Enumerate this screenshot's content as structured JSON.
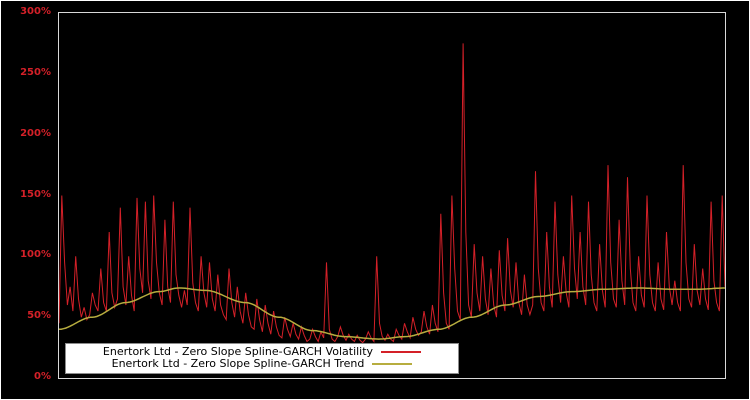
{
  "chart_data": {
    "type": "line",
    "title": "",
    "xlabel": "",
    "ylabel": "",
    "ylim": [
      0,
      300
    ],
    "y_ticks": [
      {
        "value": 0,
        "label": "0%"
      },
      {
        "value": 50,
        "label": "50%"
      },
      {
        "value": 100,
        "label": "100%"
      },
      {
        "value": 150,
        "label": "150%"
      },
      {
        "value": 200,
        "label": "200%"
      },
      {
        "value": 250,
        "label": "250%"
      },
      {
        "value": 300,
        "label": "300%"
      }
    ],
    "grid": false,
    "legend_position": "bottom-left-inside",
    "series": [
      {
        "name": "Enertork Ltd - Zero Slope Spline-GARCH Volatility",
        "color": "#d42028",
        "unit": "%",
        "values": [
          45,
          150,
          95,
          60,
          75,
          55,
          100,
          65,
          50,
          58,
          48,
          52,
          70,
          60,
          55,
          90,
          62,
          55,
          120,
          70,
          58,
          65,
          140,
          75,
          60,
          100,
          68,
          55,
          148,
          90,
          70,
          145,
          80,
          65,
          150,
          95,
          70,
          60,
          130,
          75,
          62,
          145,
          85,
          68,
          58,
          72,
          60,
          140,
          78,
          62,
          55,
          100,
          70,
          58,
          95,
          65,
          55,
          85,
          60,
          52,
          48,
          90,
          62,
          50,
          75,
          55,
          45,
          70,
          52,
          42,
          40,
          65,
          48,
          38,
          60,
          45,
          36,
          55,
          42,
          35,
          33,
          50,
          40,
          34,
          45,
          36,
          32,
          42,
          35,
          30,
          32,
          40,
          34,
          30,
          38,
          33,
          95,
          40,
          32,
          30,
          34,
          42,
          35,
          31,
          36,
          32,
          30,
          35,
          31,
          29,
          32,
          38,
          33,
          30,
          100,
          45,
          34,
          31,
          36,
          32,
          30,
          40,
          35,
          32,
          45,
          38,
          33,
          50,
          40,
          35,
          38,
          55,
          42,
          36,
          60,
          45,
          38,
          135,
          70,
          45,
          40,
          150,
          90,
          55,
          48,
          275,
          120,
          60,
          50,
          110,
          70,
          55,
          100,
          65,
          52,
          90,
          60,
          50,
          105,
          68,
          55,
          115,
          72,
          58,
          95,
          62,
          52,
          85,
          60,
          52,
          60,
          170,
          90,
          62,
          55,
          120,
          75,
          58,
          145,
          85,
          62,
          100,
          70,
          58,
          150,
          90,
          65,
          120,
          75,
          60,
          145,
          85,
          62,
          55,
          110,
          72,
          58,
          175,
          95,
          65,
          58,
          130,
          80,
          60,
          165,
          90,
          62,
          55,
          100,
          68,
          58,
          150,
          85,
          62,
          55,
          95,
          65,
          56,
          120,
          75,
          60,
          80,
          62,
          55,
          175,
          95,
          65,
          58,
          110,
          72,
          60,
          90,
          65,
          56,
          145,
          80,
          62,
          55,
          150,
          75
        ]
      },
      {
        "name": "Enertork Ltd - Zero Slope Spline-GARCH Trend",
        "color": "#b7ad3f",
        "unit": "%",
        "x": [
          0,
          0.05,
          0.1,
          0.15,
          0.18,
          0.22,
          0.28,
          0.33,
          0.38,
          0.43,
          0.48,
          0.52,
          0.57,
          0.62,
          0.67,
          0.72,
          0.77,
          0.82,
          0.87,
          0.92,
          0.96,
          1.0
        ],
        "values": [
          40,
          50,
          62,
          71,
          74,
          72,
          62,
          50,
          39,
          34,
          32,
          34,
          40,
          50,
          60,
          67,
          71,
          73,
          74,
          73,
          73,
          74
        ]
      }
    ]
  },
  "colors": {
    "background": "#000000",
    "plot_border": "#d9d9d9",
    "tick_label": "#d42028",
    "legend_background": "#ffffff",
    "legend_border": "#8c8c8c",
    "legend_text": "#000000"
  }
}
